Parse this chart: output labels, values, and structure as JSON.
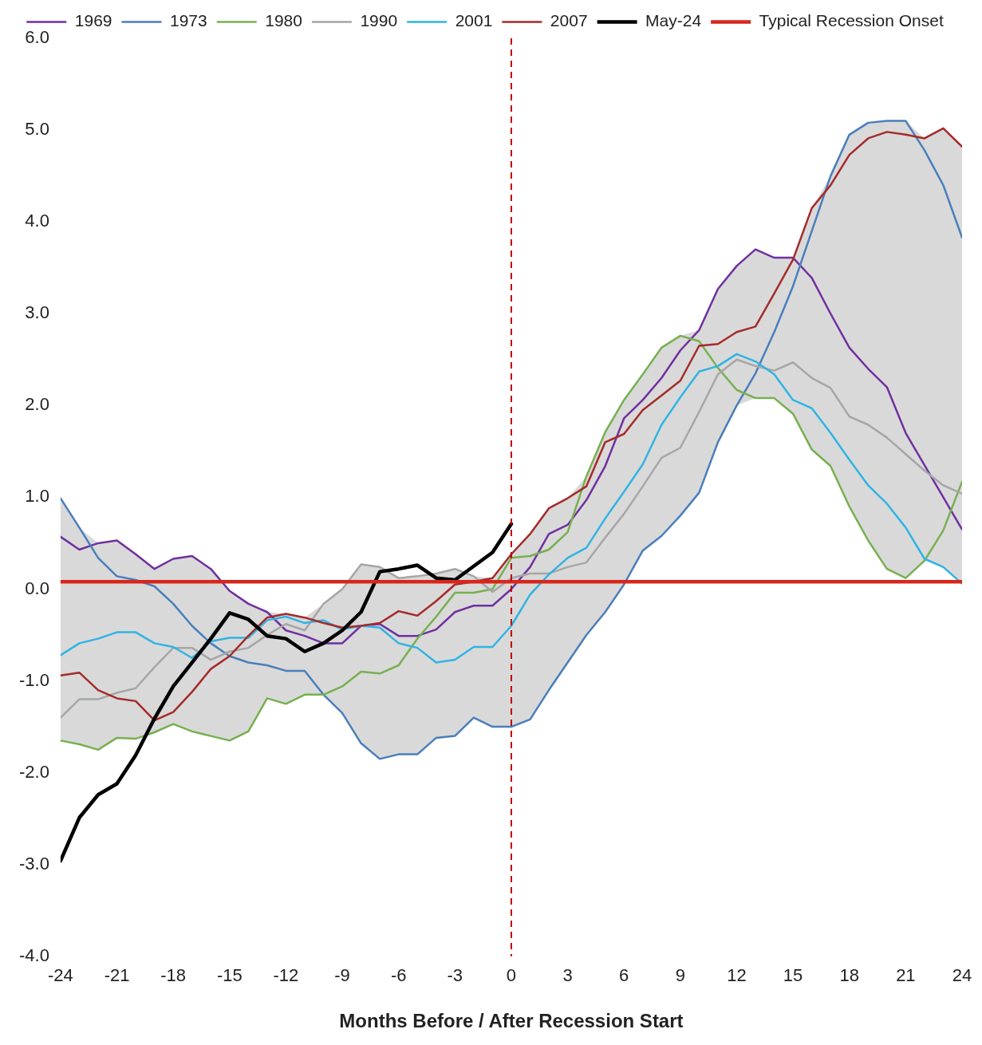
{
  "chart_data": {
    "type": "line",
    "xlabel": "Months Before / After Recession Start",
    "x": [
      -24,
      -23,
      -22,
      -21,
      -20,
      -19,
      -18,
      -17,
      -16,
      -15,
      -14,
      -13,
      -12,
      -11,
      -10,
      -9,
      -8,
      -7,
      -6,
      -5,
      -4,
      -3,
      -2,
      -1,
      0,
      1,
      2,
      3,
      4,
      5,
      6,
      7,
      8,
      9,
      10,
      11,
      12,
      13,
      14,
      15,
      16,
      17,
      18,
      19,
      20,
      21,
      22,
      23,
      24
    ],
    "xlim": [
      -24,
      24
    ],
    "xticks": [
      -24,
      -21,
      -18,
      -15,
      -12,
      -9,
      -6,
      -3,
      0,
      3,
      6,
      9,
      12,
      15,
      18,
      21,
      24
    ],
    "ylim": [
      -4,
      6
    ],
    "yticks": [
      {
        "value": -4,
        "label": "-4.0"
      },
      {
        "value": -3,
        "label": "-3.0"
      },
      {
        "value": -2,
        "label": "-2.0"
      },
      {
        "value": -1,
        "label": "-1.0"
      },
      {
        "value": 0,
        "label": "0.0"
      },
      {
        "value": 1,
        "label": "1.0"
      },
      {
        "value": 2,
        "label": "2.0"
      },
      {
        "value": 3,
        "label": "3.0"
      },
      {
        "value": 4,
        "label": "4.0"
      },
      {
        "value": 5,
        "label": "5.0"
      },
      {
        "value": 6,
        "label": "6.0"
      }
    ],
    "grid": false,
    "legend": "top",
    "line_style": "solid",
    "ref_lines": [
      {
        "axis": "x",
        "value": 0,
        "color": "#c00000",
        "line_style": "dashed"
      }
    ],
    "series": [
      {
        "name": "1969",
        "color": "#7030a0",
        "values": [
          0.57,
          0.43,
          0.5,
          0.53,
          0.38,
          0.22,
          0.33,
          0.36,
          0.22,
          -0.02,
          -0.16,
          -0.25,
          -0.45,
          -0.51,
          -0.59,
          -0.59,
          -0.4,
          -0.38,
          -0.51,
          -0.51,
          -0.44,
          -0.25,
          -0.18,
          -0.18,
          0.0,
          0.24,
          0.6,
          0.7,
          0.97,
          1.34,
          1.86,
          2.06,
          2.3,
          2.6,
          2.82,
          3.27,
          3.52,
          3.7,
          3.61,
          3.61,
          3.39,
          3.0,
          2.63,
          2.4,
          2.2,
          1.7,
          1.35,
          1.0,
          0.65
        ]
      },
      {
        "name": "1973",
        "color": "#4a7ebb",
        "values": [
          0.99,
          0.67,
          0.34,
          0.14,
          0.1,
          0.03,
          -0.16,
          -0.4,
          -0.59,
          -0.73,
          -0.8,
          -0.83,
          -0.89,
          -0.89,
          -1.15,
          -1.35,
          -1.68,
          -1.85,
          -1.8,
          -1.8,
          -1.62,
          -1.6,
          -1.4,
          -1.5,
          -1.5,
          -1.42,
          -1.1,
          -0.8,
          -0.5,
          -0.25,
          0.05,
          0.42,
          0.58,
          0.8,
          1.05,
          1.6,
          2.0,
          2.35,
          2.8,
          3.3,
          3.9,
          4.5,
          4.95,
          5.08,
          5.1,
          5.1,
          4.78,
          4.4,
          3.83
        ]
      },
      {
        "name": "1980",
        "color": "#77b050",
        "values": [
          -1.65,
          -1.69,
          -1.75,
          -1.62,
          -1.63,
          -1.56,
          -1.47,
          -1.55,
          -1.6,
          -1.65,
          -1.55,
          -1.19,
          -1.25,
          -1.15,
          -1.15,
          -1.06,
          -0.9,
          -0.92,
          -0.83,
          -0.54,
          -0.3,
          -0.04,
          -0.04,
          0.0,
          0.34,
          0.36,
          0.43,
          0.62,
          1.23,
          1.71,
          2.06,
          2.34,
          2.63,
          2.76,
          2.7,
          2.41,
          2.17,
          2.08,
          2.08,
          1.91,
          1.52,
          1.34,
          0.9,
          0.53,
          0.22,
          0.12,
          0.31,
          0.64,
          1.17
        ]
      },
      {
        "name": "1990",
        "color": "#a6a6a6",
        "values": [
          -1.4,
          -1.2,
          -1.2,
          -1.13,
          -1.08,
          -0.85,
          -0.64,
          -0.64,
          -0.77,
          -0.68,
          -0.64,
          -0.5,
          -0.38,
          -0.45,
          -0.16,
          0.0,
          0.27,
          0.24,
          0.12,
          0.14,
          0.17,
          0.22,
          0.14,
          -0.03,
          0.12,
          0.17,
          0.17,
          0.24,
          0.29,
          0.56,
          0.82,
          1.12,
          1.43,
          1.54,
          1.93,
          2.34,
          2.5,
          2.43,
          2.38,
          2.47,
          2.3,
          2.19,
          1.88,
          1.79,
          1.65,
          1.47,
          1.29,
          1.13,
          1.04
        ]
      },
      {
        "name": "2001",
        "color": "#2fb4e3",
        "values": [
          -0.72,
          -0.59,
          -0.54,
          -0.47,
          -0.47,
          -0.59,
          -0.63,
          -0.75,
          -0.57,
          -0.53,
          -0.53,
          -0.34,
          -0.3,
          -0.37,
          -0.34,
          -0.44,
          -0.4,
          -0.42,
          -0.59,
          -0.64,
          -0.8,
          -0.77,
          -0.63,
          -0.63,
          -0.4,
          -0.06,
          0.16,
          0.34,
          0.45,
          0.77,
          1.06,
          1.36,
          1.79,
          2.09,
          2.37,
          2.43,
          2.56,
          2.48,
          2.34,
          2.06,
          1.97,
          1.7,
          1.41,
          1.13,
          0.93,
          0.67,
          0.33,
          0.24,
          0.06
        ]
      },
      {
        "name": "2007",
        "color": "#a52a2a",
        "values": [
          -0.94,
          -0.91,
          -1.1,
          -1.19,
          -1.22,
          -1.43,
          -1.34,
          -1.12,
          -0.87,
          -0.73,
          -0.51,
          -0.31,
          -0.27,
          -0.31,
          -0.37,
          -0.42,
          -0.4,
          -0.37,
          -0.24,
          -0.29,
          -0.13,
          0.05,
          0.08,
          0.12,
          0.38,
          0.6,
          0.88,
          0.99,
          1.12,
          1.6,
          1.69,
          1.95,
          2.11,
          2.27,
          2.65,
          2.67,
          2.8,
          2.86,
          3.22,
          3.59,
          4.15,
          4.4,
          4.73,
          4.91,
          4.98,
          4.95,
          4.91,
          5.02,
          4.82
        ]
      },
      {
        "name": "May-24",
        "color": "#000000",
        "x": [
          -24,
          -23,
          -22,
          -21,
          -20,
          -19,
          -18,
          -17,
          -16,
          -15,
          -14,
          -13,
          -12,
          -11,
          -10,
          -9,
          -8,
          -7,
          -6,
          -5,
          -4,
          -3,
          -2,
          -1,
          0
        ],
        "values": [
          -2.96,
          -2.49,
          -2.24,
          -2.12,
          -1.81,
          -1.41,
          -1.06,
          -0.8,
          -0.54,
          -0.26,
          -0.33,
          -0.51,
          -0.54,
          -0.68,
          -0.59,
          -0.45,
          -0.25,
          0.19,
          0.22,
          0.26,
          0.12,
          0.1,
          0.25,
          0.4,
          0.71
        ]
      },
      {
        "name": "Typical Recession Onset",
        "color": "#d9261c",
        "x": [
          -24,
          24
        ],
        "values": [
          0.08,
          0.08
        ]
      }
    ]
  }
}
